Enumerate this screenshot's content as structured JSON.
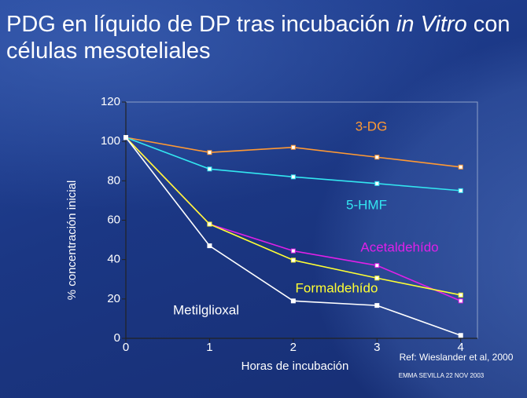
{
  "title": "PDG en líquido de  DP tras incubación",
  "title_italic": "in Vitro",
  "title_end": "con células mesoteliales",
  "chart_data": {
    "type": "line",
    "x": [
      0,
      1,
      2,
      3,
      4
    ],
    "xlim": [
      0,
      4.2
    ],
    "xticks": [
      0,
      1,
      2,
      3,
      4
    ],
    "ylim": [
      0,
      120
    ],
    "yticks": [
      0,
      20,
      40,
      60,
      80,
      100,
      120
    ],
    "x_label": "Horas de incubación",
    "y_label": "% concentración inicial",
    "series": [
      {
        "name": "3-DG",
        "color": "#ff9933",
        "values": [
          102,
          94.4,
          97,
          92,
          87
        ]
      },
      {
        "name": "5-HMF",
        "color": "#33e6f0",
        "values": [
          102,
          86,
          82,
          78.6,
          75
        ]
      },
      {
        "name": "Acetaldehído",
        "color": "#e020e8",
        "values": [
          102,
          58,
          44.4,
          37,
          19
        ]
      },
      {
        "name": "Formaldehído",
        "color": "#ffff33",
        "values": [
          102,
          58,
          39.7,
          30.6,
          22
        ]
      },
      {
        "name": "Metilglioxal",
        "color": "#ffffff",
        "values": [
          102,
          47,
          19,
          16.7,
          1.5
        ]
      }
    ],
    "reference": "Ref: Wieslander et al, 2000",
    "footer": "EMMA  SEVILLA 22 NOV 2003"
  }
}
